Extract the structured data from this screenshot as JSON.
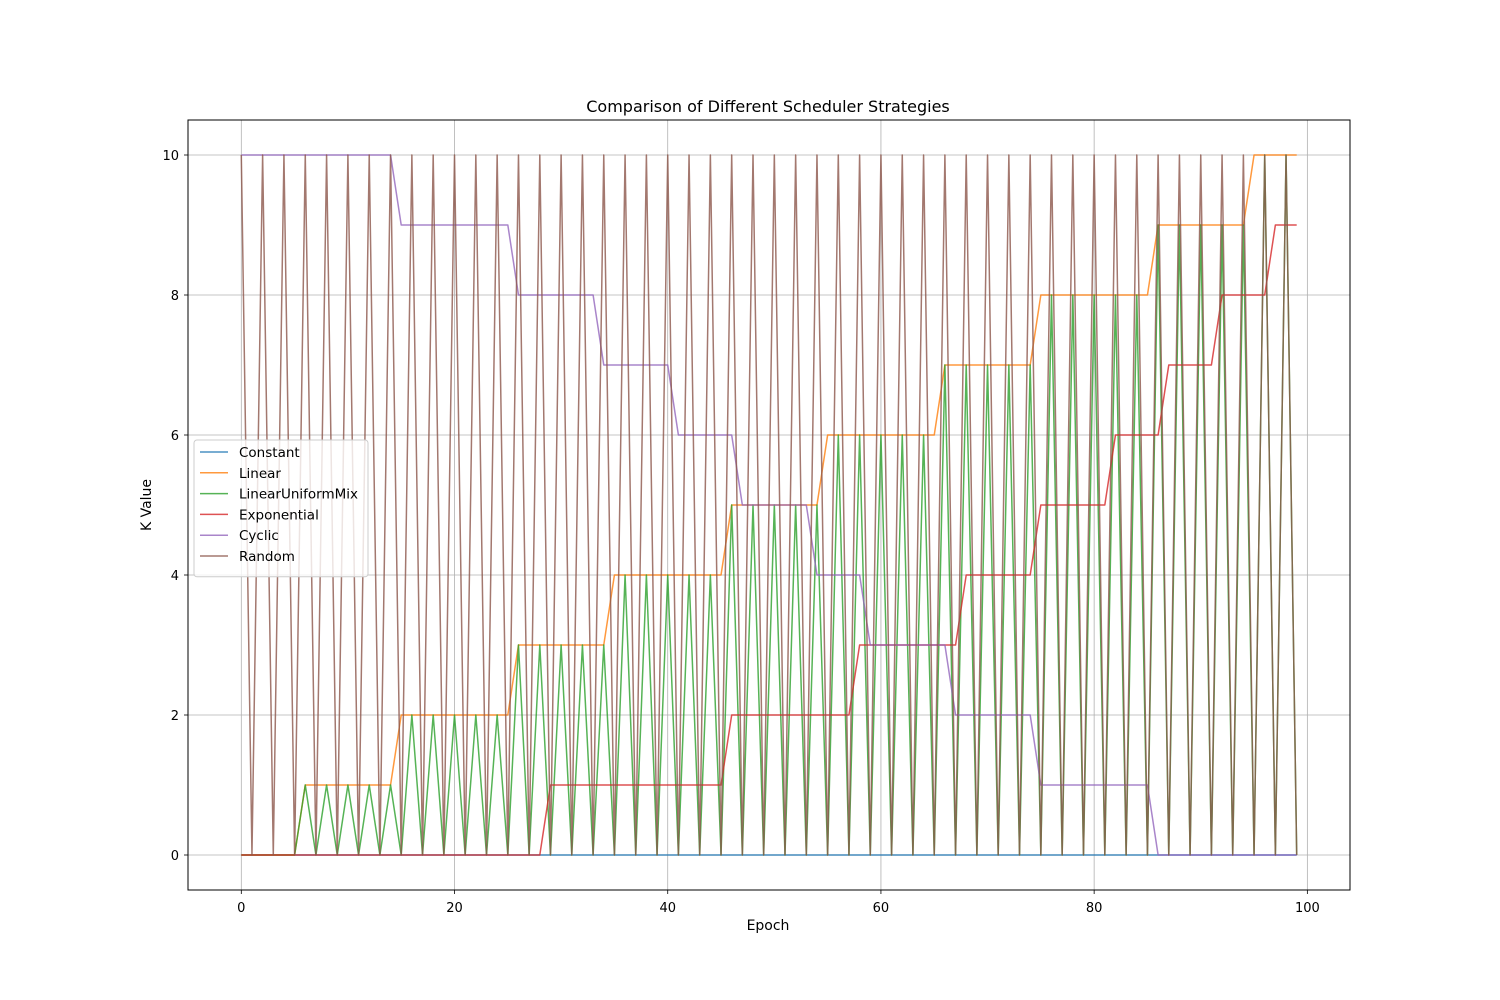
{
  "chart_data": {
    "type": "line",
    "title": "Comparison of Different Scheduler Strategies",
    "xlabel": "Epoch",
    "ylabel": "K Value",
    "xlim": [
      -5,
      104
    ],
    "ylim": [
      -0.5,
      10.5
    ],
    "xticks": [
      0,
      20,
      40,
      60,
      80,
      100
    ],
    "yticks": [
      0,
      2,
      4,
      6,
      8,
      10
    ],
    "grid": true,
    "legend_position": "center-left",
    "series": [
      {
        "name": "Constant",
        "color": "#1f77b4",
        "pattern": "constant",
        "y": [
          0
        ]
      },
      {
        "name": "Linear",
        "color": "#ff7f0e",
        "pattern": "steps",
        "steps": [
          [
            0,
            5,
            0
          ],
          [
            6,
            14,
            1
          ],
          [
            15,
            25,
            2
          ],
          [
            26,
            34,
            3
          ],
          [
            35,
            45,
            4
          ],
          [
            46,
            54,
            5
          ],
          [
            55,
            65,
            6
          ],
          [
            66,
            74,
            7
          ],
          [
            75,
            85,
            8
          ],
          [
            86,
            94,
            9
          ],
          [
            95,
            99,
            10
          ]
        ]
      },
      {
        "name": "LinearUniformMix",
        "color": "#2ca02c",
        "pattern": "mix",
        "start_epoch": 6,
        "steps": [
          [
            0,
            5,
            0
          ],
          [
            6,
            14,
            1
          ],
          [
            15,
            25,
            2
          ],
          [
            26,
            34,
            3
          ],
          [
            35,
            45,
            4
          ],
          [
            46,
            54,
            5
          ],
          [
            55,
            65,
            6
          ],
          [
            66,
            74,
            7
          ],
          [
            75,
            85,
            8
          ],
          [
            86,
            94,
            9
          ],
          [
            95,
            99,
            10
          ]
        ]
      },
      {
        "name": "Exponential",
        "color": "#d62728",
        "pattern": "steps",
        "steps": [
          [
            0,
            28,
            0
          ],
          [
            29,
            45,
            1
          ],
          [
            46,
            57,
            2
          ],
          [
            58,
            67,
            3
          ],
          [
            68,
            74,
            4
          ],
          [
            75,
            81,
            5
          ],
          [
            82,
            86,
            6
          ],
          [
            87,
            91,
            7
          ],
          [
            92,
            96,
            8
          ],
          [
            97,
            99,
            9
          ]
        ]
      },
      {
        "name": "Cyclic",
        "color": "#9467bd",
        "pattern": "steps",
        "steps": [
          [
            0,
            14,
            10
          ],
          [
            15,
            25,
            9
          ],
          [
            26,
            33,
            8
          ],
          [
            34,
            40,
            7
          ],
          [
            41,
            46,
            6
          ],
          [
            47,
            53,
            5
          ],
          [
            54,
            58,
            4
          ],
          [
            59,
            66,
            3
          ],
          [
            67,
            74,
            2
          ],
          [
            75,
            85,
            1
          ],
          [
            86,
            99,
            0
          ]
        ]
      },
      {
        "name": "Random",
        "color": "#8c564b",
        "pattern": "alternate",
        "high": 10,
        "low": 0,
        "first": 10
      }
    ],
    "epochs": [
      0,
      99
    ]
  }
}
